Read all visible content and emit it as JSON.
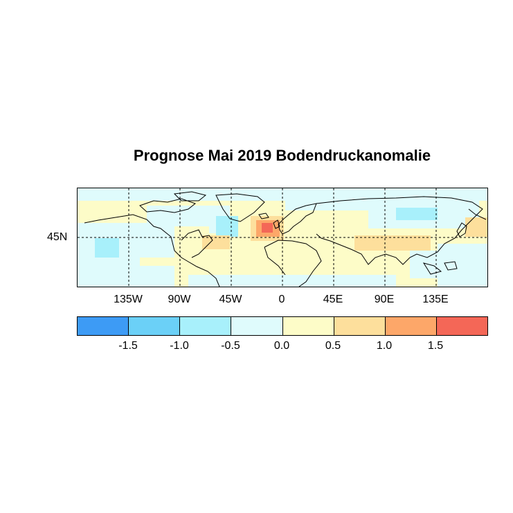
{
  "title": "Prognose Mai 2019 Bodendruckanomalie",
  "map": {
    "projection": "equirectangular",
    "longitude_range": [
      -180,
      180
    ],
    "latitude_range": [
      0,
      90
    ],
    "longitude_labels": [
      "135W",
      "90W",
      "45W",
      "0",
      "45E",
      "90E",
      "135E"
    ],
    "latitude_labels": [
      "45N"
    ],
    "gridlines": "dashed",
    "features": [
      {
        "name": "north-atlantic-positive-anomaly",
        "center": [
          -15,
          55
        ],
        "level": "1.0 to 1.5+"
      },
      {
        "name": "greenland-negative-anomaly",
        "center": [
          -45,
          60
        ],
        "level": "-0.5 to -1.0"
      },
      {
        "name": "north-pacific-negative-anomaly",
        "center": [
          -150,
          35
        ],
        "level": "-0.5 to -1.0"
      },
      {
        "name": "east-asia-positive-anomaly",
        "center": [
          130,
          50
        ],
        "level": "0.5 to 1.0"
      }
    ]
  },
  "colorbar": {
    "colors": [
      "#3d9bf5",
      "#6bd0f7",
      "#a8f0fb",
      "#dffbfc",
      "#fdfcc8",
      "#fddf9c",
      "#fda769",
      "#f46757"
    ],
    "labels": [
      "-1.5",
      "-1.0",
      "-0.5",
      "0.0",
      "0.5",
      "1.0",
      "1.5"
    ]
  }
}
